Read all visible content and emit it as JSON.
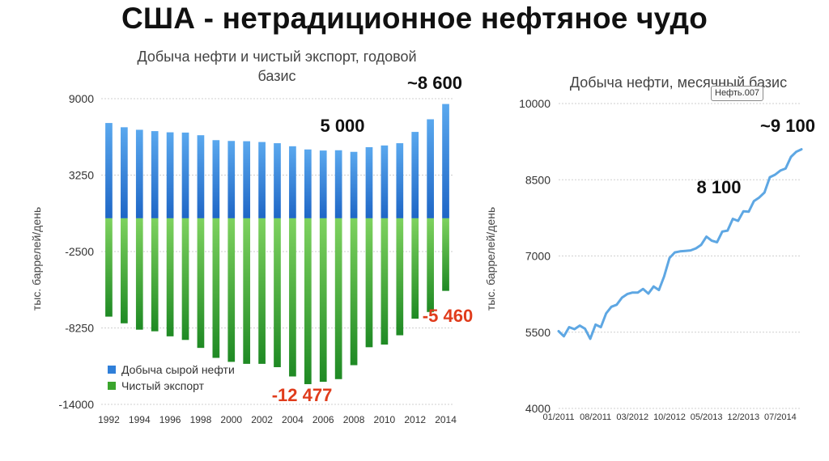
{
  "page": {
    "title": "США - нетрадиционное нефтяное чудо",
    "tooltip": "Нефть.007"
  },
  "chart_data": [
    {
      "type": "bar",
      "title": "Добыча нефти и чистый экспорт, годовой базис",
      "ylabel": "тыс. баррелей/день",
      "ylim": [
        -14000,
        9000
      ],
      "yticks": [
        9000,
        3250,
        -2500,
        -8250,
        -14000
      ],
      "ytick_labels": [
        "9000",
        "3250",
        "-2500",
        "-8250",
        "-14000"
      ],
      "grid": true,
      "legend_position": "bottom-left",
      "categories": [
        "1992",
        "1993",
        "1994",
        "1995",
        "1996",
        "1997",
        "1998",
        "1999",
        "2000",
        "2001",
        "2002",
        "2003",
        "2004",
        "2005",
        "2006",
        "2007",
        "2008",
        "2009",
        "2010",
        "2011",
        "2012",
        "2013",
        "2014"
      ],
      "xtick_labels": [
        "1992",
        "1994",
        "1996",
        "1998",
        "2000",
        "2002",
        "2004",
        "2006",
        "2008",
        "2010",
        "2012",
        "2014"
      ],
      "series": [
        {
          "name": "Добыча сырой нефти",
          "color": "#2f7fd9",
          "values": [
            7170,
            6850,
            6660,
            6560,
            6470,
            6450,
            6250,
            5880,
            5820,
            5800,
            5740,
            5650,
            5420,
            5180,
            5100,
            5120,
            5000,
            5350,
            5480,
            5650,
            6500,
            7450,
            8600
          ]
        },
        {
          "name": "Чистый экспорт",
          "color": "#3aa52d",
          "values": [
            -7400,
            -7900,
            -8380,
            -8500,
            -8880,
            -9150,
            -9750,
            -10500,
            -10800,
            -10950,
            -10950,
            -11200,
            -11900,
            -12477,
            -12300,
            -12100,
            -11050,
            -9700,
            -9500,
            -8800,
            -7550,
            -7050,
            -5460
          ]
        }
      ],
      "annotations": [
        {
          "text": "~8 600",
          "color": "#111111"
        },
        {
          "text": "5 000",
          "color": "#111111"
        },
        {
          "text": "-5 460",
          "color": "#e03c1c"
        },
        {
          "text": "-12 477",
          "color": "#e03c1c"
        }
      ]
    },
    {
      "type": "line",
      "title": "Добыча нефти, месячный базис",
      "ylabel": "тыс. баррелей/день",
      "ylim": [
        4000,
        10000
      ],
      "yticks": [
        10000,
        8500,
        7000,
        5500,
        4000
      ],
      "ytick_labels": [
        "10000",
        "8500",
        "7000",
        "5500",
        "4000"
      ],
      "grid": true,
      "xtick_labels": [
        "01/2011",
        "08/2011",
        "03/2012",
        "10/2012",
        "05/2013",
        "12/2013",
        "07/2014"
      ],
      "series": [
        {
          "color": "#5ea7e3",
          "x": [
            "01/2011",
            "02/2011",
            "03/2011",
            "04/2011",
            "05/2011",
            "06/2011",
            "07/2011",
            "08/2011",
            "09/2011",
            "10/2011",
            "11/2011",
            "12/2011",
            "01/2012",
            "02/2012",
            "03/2012",
            "04/2012",
            "05/2012",
            "06/2012",
            "07/2012",
            "08/2012",
            "09/2012",
            "10/2012",
            "11/2012",
            "12/2012",
            "01/2013",
            "02/2013",
            "03/2013",
            "04/2013",
            "05/2013",
            "06/2013",
            "07/2013",
            "08/2013",
            "09/2013",
            "10/2013",
            "11/2013",
            "12/2013",
            "01/2014",
            "02/2014",
            "03/2014",
            "04/2014",
            "05/2014",
            "06/2014",
            "07/2014",
            "08/2014",
            "09/2014",
            "10/2014",
            "11/2014"
          ],
          "values": [
            5520,
            5420,
            5600,
            5560,
            5630,
            5570,
            5370,
            5650,
            5600,
            5870,
            6000,
            6040,
            6180,
            6250,
            6280,
            6280,
            6350,
            6260,
            6400,
            6330,
            6600,
            6960,
            7070,
            7090,
            7100,
            7110,
            7150,
            7220,
            7380,
            7300,
            7270,
            7480,
            7500,
            7730,
            7690,
            7880,
            7870,
            8080,
            8150,
            8250,
            8550,
            8600,
            8680,
            8720,
            8950,
            9050,
            9100
          ]
        }
      ],
      "annotations": [
        {
          "text": "~9 100",
          "color": "#111111"
        },
        {
          "text": "8 100",
          "color": "#111111"
        }
      ]
    }
  ]
}
